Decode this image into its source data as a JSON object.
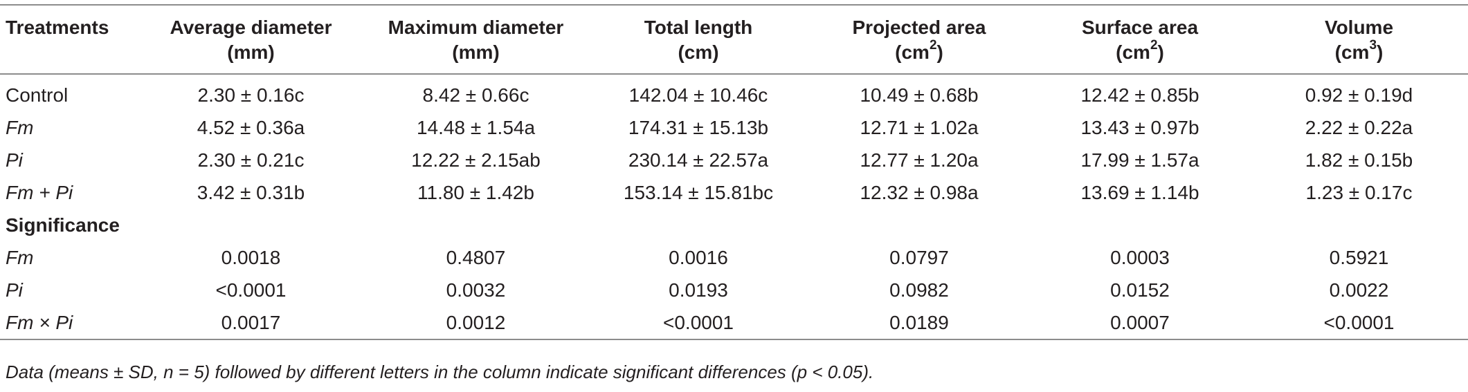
{
  "headers": [
    {
      "line1": "Treatments",
      "line2": "",
      "sup": ""
    },
    {
      "line1": "Average diameter",
      "line2": "(mm)",
      "sup": ""
    },
    {
      "line1": "Maximum diameter",
      "line2": "(mm)",
      "sup": ""
    },
    {
      "line1": "Total length",
      "line2": "(cm)",
      "sup": ""
    },
    {
      "line1": "Projected area",
      "line2": "(cm",
      "sup": "2",
      "tail": ")"
    },
    {
      "line1": "Surface area",
      "line2": "(cm",
      "sup": "2",
      "tail": ")"
    },
    {
      "line1": "Volume",
      "line2": "(cm",
      "sup": "3",
      "tail": ")"
    }
  ],
  "treatment_rows": [
    {
      "label": "Control",
      "italic": false,
      "cells": [
        "2.30 ± 0.16c",
        "8.42 ± 0.66c",
        "142.04 ± 10.46c",
        "10.49 ± 0.68b",
        "12.42 ± 0.85b",
        "0.92 ± 0.19d"
      ]
    },
    {
      "label": "Fm",
      "italic": true,
      "cells": [
        "4.52 ± 0.36a",
        "14.48 ± 1.54a",
        "174.31 ± 15.13b",
        "12.71 ± 1.02a",
        "13.43 ± 0.97b",
        "2.22 ± 0.22a"
      ]
    },
    {
      "label": "Pi",
      "italic": true,
      "cells": [
        "2.30 ± 0.21c",
        "12.22 ± 2.15ab",
        "230.14 ± 22.57a",
        "12.77 ± 1.20a",
        "17.99 ± 1.57a",
        "1.82 ± 0.15b"
      ]
    },
    {
      "label": "Fm + Pi",
      "italic": true,
      "cells": [
        "3.42 ± 0.31b",
        "11.80 ± 1.42b",
        "153.14 ± 15.81bc",
        "12.32 ± 0.98a",
        "13.69 ± 1.14b",
        "1.23 ± 0.17c"
      ]
    }
  ],
  "section_label": "Significance",
  "significance_rows": [
    {
      "label": "Fm",
      "italic": true,
      "cells": [
        "0.0018",
        "0.4807",
        "0.0016",
        "0.0797",
        "0.0003",
        "0.5921"
      ]
    },
    {
      "label": "Pi",
      "italic": true,
      "cells": [
        "<0.0001",
        "0.0032",
        "0.0193",
        "0.0982",
        "0.0152",
        "0.0022"
      ]
    },
    {
      "label": "Fm × Pi",
      "italic": true,
      "cells": [
        "0.0017",
        "0.0012",
        "<0.0001",
        "0.0189",
        "0.0007",
        "<0.0001"
      ]
    }
  ],
  "note": "Data (means ± SD, n = 5) followed by different letters in the column indicate significant differences (p < 0.05)."
}
